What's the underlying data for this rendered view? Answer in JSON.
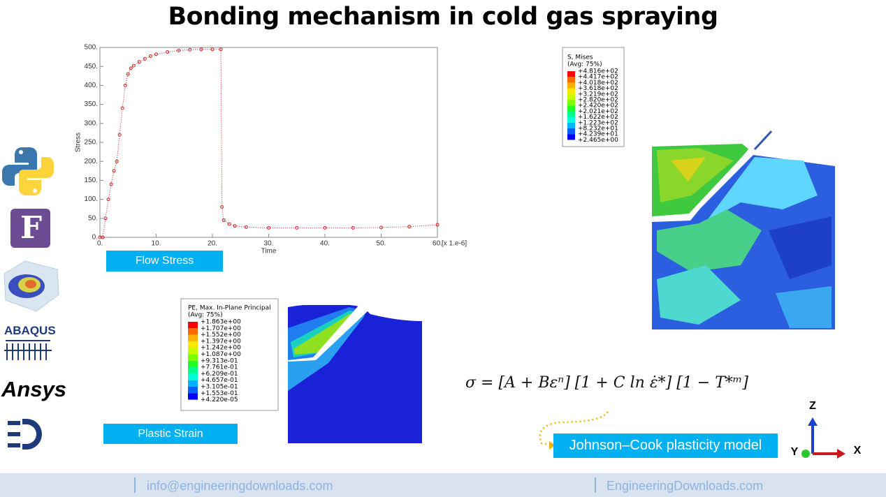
{
  "title": "Bonding mechanism in cold gas spraying",
  "chart_data": {
    "type": "line",
    "x_label": "Time",
    "y_label": "Stress",
    "annotations": [
      "[x 1.e-6]"
    ],
    "x": [
      0,
      0.5,
      1,
      1.5,
      2,
      2.5,
      3,
      3.5,
      4,
      4.5,
      5,
      5.5,
      6,
      7,
      8,
      9,
      10,
      12,
      14,
      16,
      18,
      20,
      21.5,
      21.7,
      22,
      23,
      24,
      26,
      30,
      35,
      40,
      45,
      50,
      55,
      60
    ],
    "values": [
      0,
      0,
      50,
      100,
      140,
      175,
      200,
      270,
      340,
      400,
      430,
      445,
      452,
      462,
      470,
      477,
      482,
      488,
      492,
      494,
      495,
      495,
      495,
      80,
      45,
      35,
      30,
      27,
      25,
      25,
      25,
      25,
      26,
      28,
      33
    ],
    "color": "#cc2222",
    "xlim": [
      0,
      60
    ],
    "ylim": [
      0,
      500
    ],
    "xticks": [
      {
        "value": 0,
        "label": "0."
      },
      {
        "value": 10,
        "label": "10."
      },
      {
        "value": 20,
        "label": "20."
      },
      {
        "value": 30,
        "label": "30."
      },
      {
        "value": 40,
        "label": "40."
      },
      {
        "value": 50,
        "label": "50."
      },
      {
        "value": 60,
        "label": "60."
      }
    ],
    "yticks": [
      {
        "value": 0,
        "label": "0."
      },
      {
        "value": 50,
        "label": "50."
      },
      {
        "value": 100,
        "label": "100."
      },
      {
        "value": 150,
        "label": "150."
      },
      {
        "value": 200,
        "label": "200."
      },
      {
        "value": 250,
        "label": "250."
      },
      {
        "value": 300,
        "label": "300."
      },
      {
        "value": 350,
        "label": "350."
      },
      {
        "value": 400,
        "label": "400."
      },
      {
        "value": 450,
        "label": "450."
      },
      {
        "value": 500,
        "label": "500."
      }
    ]
  },
  "labels": {
    "flow_stress": "Flow Stress",
    "plastic_strain": "Plastic Strain",
    "johnson_cook": "Johnson–Cook plasticity model"
  },
  "equation": "σ = [A + Bεⁿ] [1 + C ln ε̇*] [1 − T*ᵐ]",
  "legend_mises": {
    "title": "S, Mises",
    "subtitle": "(Avg: 75%)",
    "labels": [
      "+4.816e+02",
      "+4.417e+02",
      "+4.018e+02",
      "+3.618e+02",
      "+3.219e+02",
      "+2.820e+02",
      "+2.420e+02",
      "+2.021e+02",
      "+1.622e+02",
      "+1.223e+02",
      "+8.232e+01",
      "+4.239e+01",
      "+2.465e+00"
    ]
  },
  "legend_pe": {
    "title": "PE, Max. In-Plane Principal",
    "subtitle": "(Avg: 75%)",
    "labels": [
      "+1.863e+00",
      "+1.707e+00",
      "+1.552e+00",
      "+1.397e+00",
      "+1.242e+00",
      "+1.087e+00",
      "+9.313e-01",
      "+7.761e-01",
      "+6.209e-01",
      "+4.657e-01",
      "+3.105e-01",
      "+1.553e-01",
      "+4.220e-05"
    ]
  },
  "logos": {
    "fortran": "F",
    "abaqus": "ABAQUS",
    "ansys": "Ansys"
  },
  "triad": {
    "z": "Z",
    "y": "Y",
    "x": "X"
  },
  "footer": {
    "email": "info@engineeringdownloads.com",
    "website": "EngineeringDownloads.com"
  }
}
